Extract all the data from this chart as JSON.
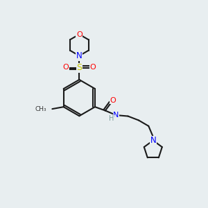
{
  "bg_color": "#e8eef0",
  "bond_color": "#1a1a1a",
  "atom_colors": {
    "O": "#ff0000",
    "N": "#0000ff",
    "S": "#cccc00",
    "C": "#1a1a1a",
    "H": "#7a9a9a"
  }
}
